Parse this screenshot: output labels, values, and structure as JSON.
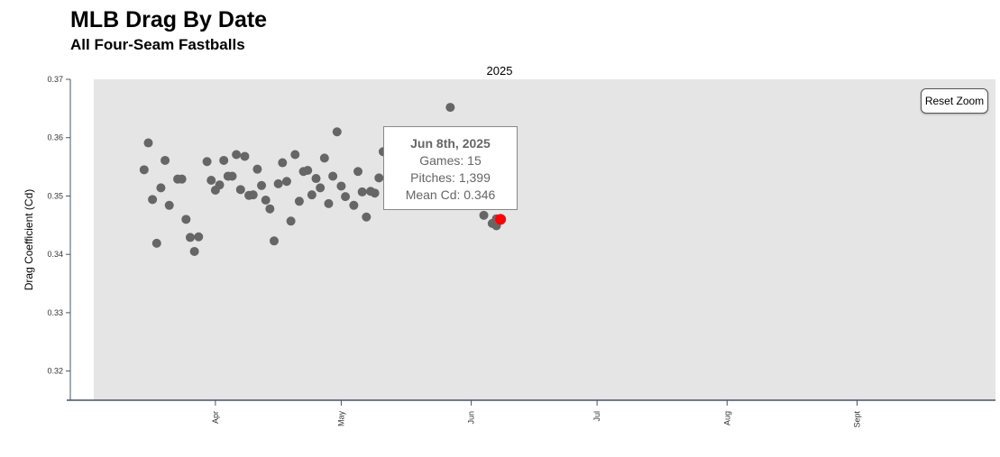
{
  "header": {
    "title": "MLB Drag By Date",
    "subtitle": "All Four-Seam Fastballs"
  },
  "toolbar": {
    "reset_zoom_label": "Reset Zoom"
  },
  "tooltip": {
    "date": "Jun 8th, 2025",
    "games": "Games: 15",
    "pitches": "Pitches: 1,399",
    "mean_cd": "Mean Cd: 0.346"
  },
  "colors": {
    "plot_bg": "#e5e5e5",
    "point": "#666666",
    "highlight": "#ff0000",
    "axis": "#44546a"
  },
  "chart_data": {
    "type": "scatter",
    "title": "2025",
    "ylabel": "Drag Coefficient (Cd)",
    "xlabel": "",
    "ylim": [
      0.315,
      0.37
    ],
    "xlim": [
      "2025-03-03",
      "2025-10-04"
    ],
    "yticks": [
      "0.32",
      "0.33",
      "0.34",
      "0.35",
      "0.36",
      "0.37"
    ],
    "xticks": [
      {
        "date": "2025-04-01",
        "label": "Apr"
      },
      {
        "date": "2025-05-01",
        "label": "May"
      },
      {
        "date": "2025-06-01",
        "label": "Jun"
      },
      {
        "date": "2025-07-01",
        "label": "Jul"
      },
      {
        "date": "2025-08-01",
        "label": "Aug"
      },
      {
        "date": "2025-09-01",
        "label": "Sept"
      }
    ],
    "grid": false,
    "highlight": {
      "x": "2025-06-08",
      "y": 0.346
    },
    "points": [
      {
        "x": "2025-03-15",
        "y": 0.3545
      },
      {
        "x": "2025-03-16",
        "y": 0.3591
      },
      {
        "x": "2025-03-17",
        "y": 0.3494
      },
      {
        "x": "2025-03-18",
        "y": 0.3419
      },
      {
        "x": "2025-03-19",
        "y": 0.3514
      },
      {
        "x": "2025-03-20",
        "y": 0.3561
      },
      {
        "x": "2025-03-21",
        "y": 0.3484
      },
      {
        "x": "2025-03-23",
        "y": 0.3529
      },
      {
        "x": "2025-03-24",
        "y": 0.3529
      },
      {
        "x": "2025-03-25",
        "y": 0.346
      },
      {
        "x": "2025-03-26",
        "y": 0.3429
      },
      {
        "x": "2025-03-27",
        "y": 0.3405
      },
      {
        "x": "2025-03-28",
        "y": 0.343
      },
      {
        "x": "2025-03-30",
        "y": 0.3559
      },
      {
        "x": "2025-03-31",
        "y": 0.3527
      },
      {
        "x": "2025-04-01",
        "y": 0.351
      },
      {
        "x": "2025-04-02",
        "y": 0.3519
      },
      {
        "x": "2025-04-03",
        "y": 0.3561
      },
      {
        "x": "2025-04-04",
        "y": 0.3534
      },
      {
        "x": "2025-04-05",
        "y": 0.3534
      },
      {
        "x": "2025-04-06",
        "y": 0.3571
      },
      {
        "x": "2025-04-07",
        "y": 0.3511
      },
      {
        "x": "2025-04-08",
        "y": 0.3568
      },
      {
        "x": "2025-04-09",
        "y": 0.3501
      },
      {
        "x": "2025-04-10",
        "y": 0.3502
      },
      {
        "x": "2025-04-11",
        "y": 0.3546
      },
      {
        "x": "2025-04-12",
        "y": 0.3518
      },
      {
        "x": "2025-04-13",
        "y": 0.3493
      },
      {
        "x": "2025-04-14",
        "y": 0.3478
      },
      {
        "x": "2025-04-15",
        "y": 0.3423
      },
      {
        "x": "2025-04-16",
        "y": 0.3521
      },
      {
        "x": "2025-04-17",
        "y": 0.3557
      },
      {
        "x": "2025-04-18",
        "y": 0.3525
      },
      {
        "x": "2025-04-19",
        "y": 0.3457
      },
      {
        "x": "2025-04-20",
        "y": 0.3571
      },
      {
        "x": "2025-04-21",
        "y": 0.3491
      },
      {
        "x": "2025-04-22",
        "y": 0.3542
      },
      {
        "x": "2025-04-23",
        "y": 0.3544
      },
      {
        "x": "2025-04-24",
        "y": 0.3502
      },
      {
        "x": "2025-04-25",
        "y": 0.353
      },
      {
        "x": "2025-04-26",
        "y": 0.3514
      },
      {
        "x": "2025-04-27",
        "y": 0.3565
      },
      {
        "x": "2025-04-28",
        "y": 0.3487
      },
      {
        "x": "2025-04-29",
        "y": 0.3534
      },
      {
        "x": "2025-04-30",
        "y": 0.361
      },
      {
        "x": "2025-05-01",
        "y": 0.3517
      },
      {
        "x": "2025-05-02",
        "y": 0.3499
      },
      {
        "x": "2025-05-04",
        "y": 0.3484
      },
      {
        "x": "2025-05-05",
        "y": 0.3542
      },
      {
        "x": "2025-05-06",
        "y": 0.3507
      },
      {
        "x": "2025-05-07",
        "y": 0.3464
      },
      {
        "x": "2025-05-08",
        "y": 0.3508
      },
      {
        "x": "2025-05-09",
        "y": 0.3505
      },
      {
        "x": "2025-05-10",
        "y": 0.3531
      },
      {
        "x": "2025-05-11",
        "y": 0.3576
      },
      {
        "x": "2025-05-27",
        "y": 0.3652
      },
      {
        "x": "2025-06-04",
        "y": 0.3467
      },
      {
        "x": "2025-06-06",
        "y": 0.3453
      },
      {
        "x": "2025-06-07",
        "y": 0.3461
      },
      {
        "x": "2025-06-07",
        "y": 0.3449
      }
    ]
  }
}
